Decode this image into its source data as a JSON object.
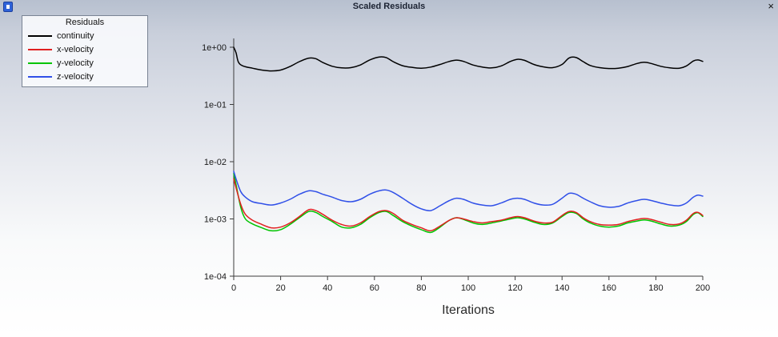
{
  "window": {
    "title": "Scaled Residuals",
    "close_label": "×"
  },
  "legend": {
    "title": "Residuals",
    "items": [
      {
        "label": "continuity",
        "color": "#000000"
      },
      {
        "label": "x-velocity",
        "color": "#e02020"
      },
      {
        "label": "y-velocity",
        "color": "#00c400"
      },
      {
        "label": "z-velocity",
        "color": "#3050e8"
      }
    ]
  },
  "chart_data": {
    "type": "line",
    "title": "Scaled Residuals",
    "xlabel": "Iterations",
    "ylabel": "",
    "x_scale": "linear",
    "y_scale": "log",
    "xlim": [
      0,
      200
    ],
    "ylim": [
      0.0001,
      1
    ],
    "x_ticks": [
      0,
      20,
      40,
      60,
      80,
      100,
      120,
      140,
      160,
      180,
      200
    ],
    "y_tick_labels": [
      "1e+00",
      "1e-01",
      "1e-02",
      "1e-03",
      "1e-04"
    ],
    "grid": false,
    "legend_position": "top-left",
    "series": [
      {
        "name": "continuity",
        "color": "#000000",
        "points": [
          [
            0,
            1.0
          ],
          [
            1,
            0.8
          ],
          [
            2,
            0.55
          ],
          [
            4,
            0.47
          ],
          [
            8,
            0.43
          ],
          [
            12,
            0.4
          ],
          [
            16,
            0.385
          ],
          [
            20,
            0.4
          ],
          [
            24,
            0.46
          ],
          [
            28,
            0.56
          ],
          [
            32,
            0.645
          ],
          [
            35,
            0.63
          ],
          [
            38,
            0.54
          ],
          [
            42,
            0.465
          ],
          [
            46,
            0.435
          ],
          [
            50,
            0.44
          ],
          [
            54,
            0.49
          ],
          [
            58,
            0.6
          ],
          [
            62,
            0.675
          ],
          [
            65,
            0.66
          ],
          [
            68,
            0.56
          ],
          [
            72,
            0.475
          ],
          [
            76,
            0.445
          ],
          [
            80,
            0.43
          ],
          [
            84,
            0.45
          ],
          [
            88,
            0.5
          ],
          [
            92,
            0.565
          ],
          [
            95,
            0.595
          ],
          [
            98,
            0.565
          ],
          [
            102,
            0.49
          ],
          [
            106,
            0.45
          ],
          [
            110,
            0.435
          ],
          [
            114,
            0.47
          ],
          [
            118,
            0.565
          ],
          [
            121,
            0.615
          ],
          [
            124,
            0.59
          ],
          [
            128,
            0.5
          ],
          [
            132,
            0.455
          ],
          [
            136,
            0.44
          ],
          [
            140,
            0.5
          ],
          [
            143,
            0.65
          ],
          [
            146,
            0.66
          ],
          [
            149,
            0.56
          ],
          [
            152,
            0.48
          ],
          [
            156,
            0.44
          ],
          [
            160,
            0.425
          ],
          [
            164,
            0.43
          ],
          [
            168,
            0.46
          ],
          [
            172,
            0.52
          ],
          [
            175,
            0.545
          ],
          [
            178,
            0.52
          ],
          [
            182,
            0.465
          ],
          [
            186,
            0.435
          ],
          [
            190,
            0.43
          ],
          [
            193,
            0.47
          ],
          [
            196,
            0.575
          ],
          [
            198,
            0.6
          ],
          [
            200,
            0.565
          ]
        ]
      },
      {
        "name": "x-velocity",
        "color": "#e02020",
        "points": [
          [
            0,
            0.005
          ],
          [
            1,
            0.0035
          ],
          [
            3,
            0.0018
          ],
          [
            5,
            0.0012
          ],
          [
            8,
            0.00095
          ],
          [
            12,
            0.0008
          ],
          [
            16,
            0.0007
          ],
          [
            20,
            0.00072
          ],
          [
            24,
            0.00085
          ],
          [
            28,
            0.0011
          ],
          [
            32,
            0.00145
          ],
          [
            35,
            0.0014
          ],
          [
            38,
            0.0012
          ],
          [
            42,
            0.00095
          ],
          [
            46,
            0.0008
          ],
          [
            50,
            0.00075
          ],
          [
            54,
            0.00085
          ],
          [
            58,
            0.0011
          ],
          [
            62,
            0.00135
          ],
          [
            65,
            0.0014
          ],
          [
            68,
            0.00125
          ],
          [
            72,
            0.00095
          ],
          [
            76,
            0.0008
          ],
          [
            80,
            0.0007
          ],
          [
            84,
            0.00062
          ],
          [
            88,
            0.00075
          ],
          [
            92,
            0.00095
          ],
          [
            95,
            0.00105
          ],
          [
            98,
            0.001
          ],
          [
            102,
            0.0009
          ],
          [
            106,
            0.00085
          ],
          [
            110,
            0.0009
          ],
          [
            114,
            0.00095
          ],
          [
            118,
            0.00105
          ],
          [
            121,
            0.0011
          ],
          [
            124,
            0.00105
          ],
          [
            128,
            0.00092
          ],
          [
            132,
            0.00085
          ],
          [
            136,
            0.00088
          ],
          [
            140,
            0.00115
          ],
          [
            143,
            0.00135
          ],
          [
            146,
            0.0013
          ],
          [
            149,
            0.00105
          ],
          [
            152,
            0.0009
          ],
          [
            156,
            0.0008
          ],
          [
            160,
            0.00078
          ],
          [
            164,
            0.0008
          ],
          [
            168,
            0.0009
          ],
          [
            172,
            0.00098
          ],
          [
            175,
            0.00102
          ],
          [
            178,
            0.00098
          ],
          [
            182,
            0.00088
          ],
          [
            186,
            0.0008
          ],
          [
            190,
            0.00082
          ],
          [
            193,
            0.00095
          ],
          [
            196,
            0.00125
          ],
          [
            198,
            0.0013
          ],
          [
            200,
            0.00115
          ]
        ]
      },
      {
        "name": "y-velocity",
        "color": "#00c400",
        "points": [
          [
            0,
            0.0062
          ],
          [
            1,
            0.004
          ],
          [
            3,
            0.0016
          ],
          [
            5,
            0.001
          ],
          [
            8,
            0.00082
          ],
          [
            12,
            0.0007
          ],
          [
            16,
            0.00062
          ],
          [
            20,
            0.00065
          ],
          [
            24,
            0.0008
          ],
          [
            28,
            0.00105
          ],
          [
            32,
            0.00135
          ],
          [
            35,
            0.0013
          ],
          [
            38,
            0.0011
          ],
          [
            42,
            0.0009
          ],
          [
            46,
            0.00072
          ],
          [
            50,
            0.0007
          ],
          [
            54,
            0.0008
          ],
          [
            58,
            0.00105
          ],
          [
            62,
            0.0013
          ],
          [
            65,
            0.00135
          ],
          [
            68,
            0.00115
          ],
          [
            72,
            0.0009
          ],
          [
            76,
            0.00075
          ],
          [
            80,
            0.00065
          ],
          [
            84,
            0.00058
          ],
          [
            88,
            0.00072
          ],
          [
            92,
            0.00095
          ],
          [
            95,
            0.00105
          ],
          [
            98,
            0.00098
          ],
          [
            102,
            0.00085
          ],
          [
            106,
            0.0008
          ],
          [
            110,
            0.00085
          ],
          [
            114,
            0.00092
          ],
          [
            118,
            0.001
          ],
          [
            121,
            0.00105
          ],
          [
            124,
            0.001
          ],
          [
            128,
            0.00088
          ],
          [
            132,
            0.0008
          ],
          [
            136,
            0.00085
          ],
          [
            140,
            0.0011
          ],
          [
            143,
            0.0013
          ],
          [
            146,
            0.00125
          ],
          [
            149,
            0.001
          ],
          [
            152,
            0.00085
          ],
          [
            156,
            0.00075
          ],
          [
            160,
            0.00072
          ],
          [
            164,
            0.00075
          ],
          [
            168,
            0.00085
          ],
          [
            172,
            0.00092
          ],
          [
            175,
            0.00096
          ],
          [
            178,
            0.00092
          ],
          [
            182,
            0.00082
          ],
          [
            186,
            0.00075
          ],
          [
            190,
            0.00078
          ],
          [
            193,
            0.0009
          ],
          [
            196,
            0.0012
          ],
          [
            198,
            0.00128
          ],
          [
            200,
            0.0011
          ]
        ]
      },
      {
        "name": "z-velocity",
        "color": "#3050e8",
        "points": [
          [
            0,
            0.0068
          ],
          [
            1,
            0.005
          ],
          [
            3,
            0.003
          ],
          [
            5,
            0.0024
          ],
          [
            8,
            0.002
          ],
          [
            12,
            0.00185
          ],
          [
            16,
            0.00175
          ],
          [
            20,
            0.0019
          ],
          [
            24,
            0.0022
          ],
          [
            28,
            0.0027
          ],
          [
            32,
            0.0031
          ],
          [
            35,
            0.003
          ],
          [
            38,
            0.0027
          ],
          [
            42,
            0.0024
          ],
          [
            46,
            0.0021
          ],
          [
            50,
            0.002
          ],
          [
            54,
            0.0022
          ],
          [
            58,
            0.0027
          ],
          [
            62,
            0.0031
          ],
          [
            65,
            0.0032
          ],
          [
            68,
            0.0029
          ],
          [
            72,
            0.0023
          ],
          [
            76,
            0.0018
          ],
          [
            80,
            0.0015
          ],
          [
            84,
            0.0014
          ],
          [
            88,
            0.0017
          ],
          [
            92,
            0.0021
          ],
          [
            95,
            0.0023
          ],
          [
            98,
            0.0022
          ],
          [
            102,
            0.0019
          ],
          [
            106,
            0.00175
          ],
          [
            110,
            0.0017
          ],
          [
            114,
            0.0019
          ],
          [
            118,
            0.0022
          ],
          [
            121,
            0.0023
          ],
          [
            124,
            0.0022
          ],
          [
            128,
            0.0019
          ],
          [
            132,
            0.00175
          ],
          [
            136,
            0.0018
          ],
          [
            140,
            0.0023
          ],
          [
            143,
            0.0028
          ],
          [
            146,
            0.0027
          ],
          [
            149,
            0.0023
          ],
          [
            152,
            0.002
          ],
          [
            156,
            0.0017
          ],
          [
            160,
            0.0016
          ],
          [
            164,
            0.00165
          ],
          [
            168,
            0.0019
          ],
          [
            172,
            0.0021
          ],
          [
            175,
            0.0022
          ],
          [
            178,
            0.0021
          ],
          [
            182,
            0.0019
          ],
          [
            186,
            0.00175
          ],
          [
            190,
            0.0017
          ],
          [
            193,
            0.0019
          ],
          [
            196,
            0.0024
          ],
          [
            198,
            0.0026
          ],
          [
            200,
            0.0025
          ]
        ]
      }
    ]
  }
}
